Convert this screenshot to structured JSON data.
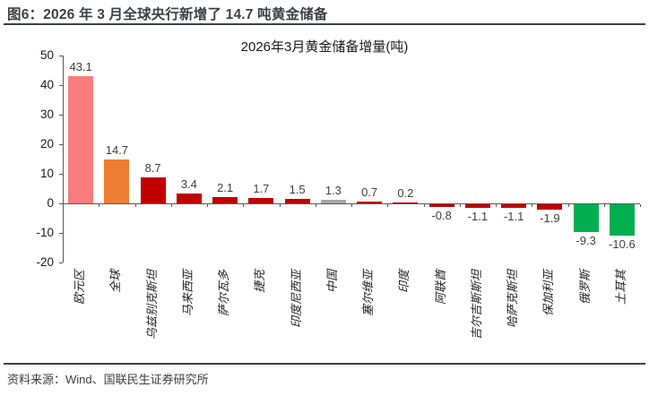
{
  "header": {
    "figure_title": "图6：2026 年 3 月全球央行新增了 14.7 吨黄金储备"
  },
  "footer": {
    "source": "资料来源：Wind、国联民生证券研究所"
  },
  "chart_data": {
    "type": "bar",
    "title": "2026年3月黄金储备增量(吨)",
    "xlabel": "",
    "ylabel": "",
    "ylim": [
      -20,
      50
    ],
    "yticks": [
      50,
      40,
      30,
      20,
      10,
      0,
      -10,
      -20
    ],
    "grid": false,
    "legend": "none",
    "categories": [
      "欧元区",
      "全球",
      "乌兹别克斯坦",
      "马来西亚",
      "萨尔瓦多",
      "捷克",
      "印度尼西亚",
      "中国",
      "塞尔维亚",
      "印度",
      "阿联酋",
      "吉尔吉斯斯坦",
      "哈萨克斯坦",
      "保加利亚",
      "俄罗斯",
      "土耳其"
    ],
    "values": [
      43.1,
      14.7,
      8.7,
      3.4,
      2.1,
      1.7,
      1.5,
      1.3,
      0.7,
      0.2,
      -0.8,
      -1.1,
      -1.1,
      -1.9,
      -9.3,
      -10.6
    ],
    "value_labels": [
      "43.1",
      "14.7",
      "8.7",
      "3.4",
      "2.1",
      "1.7",
      "1.5",
      "1.3",
      "0.7",
      "0.2",
      "-0.8",
      "-1.1",
      "-1.1",
      "-1.9",
      "-9.3",
      "-10.6"
    ],
    "bar_colors": [
      "#FA7D7D",
      "#ED7D31",
      "#C00000",
      "#C00000",
      "#C00000",
      "#C00000",
      "#C00000",
      "#A6A6A6",
      "#C00000",
      "#C00000",
      "#C00000",
      "#C00000",
      "#C00000",
      "#C00000",
      "#00B050",
      "#00B050"
    ],
    "colors": {
      "highlight_pink": "#FA7D7D",
      "highlight_orange": "#ED7D31",
      "default_red": "#C00000",
      "china_gray": "#A6A6A6",
      "negative_green": "#00B050",
      "axis": "#595959",
      "data_label": "#404040",
      "accent_rule": "#3d4046"
    }
  }
}
